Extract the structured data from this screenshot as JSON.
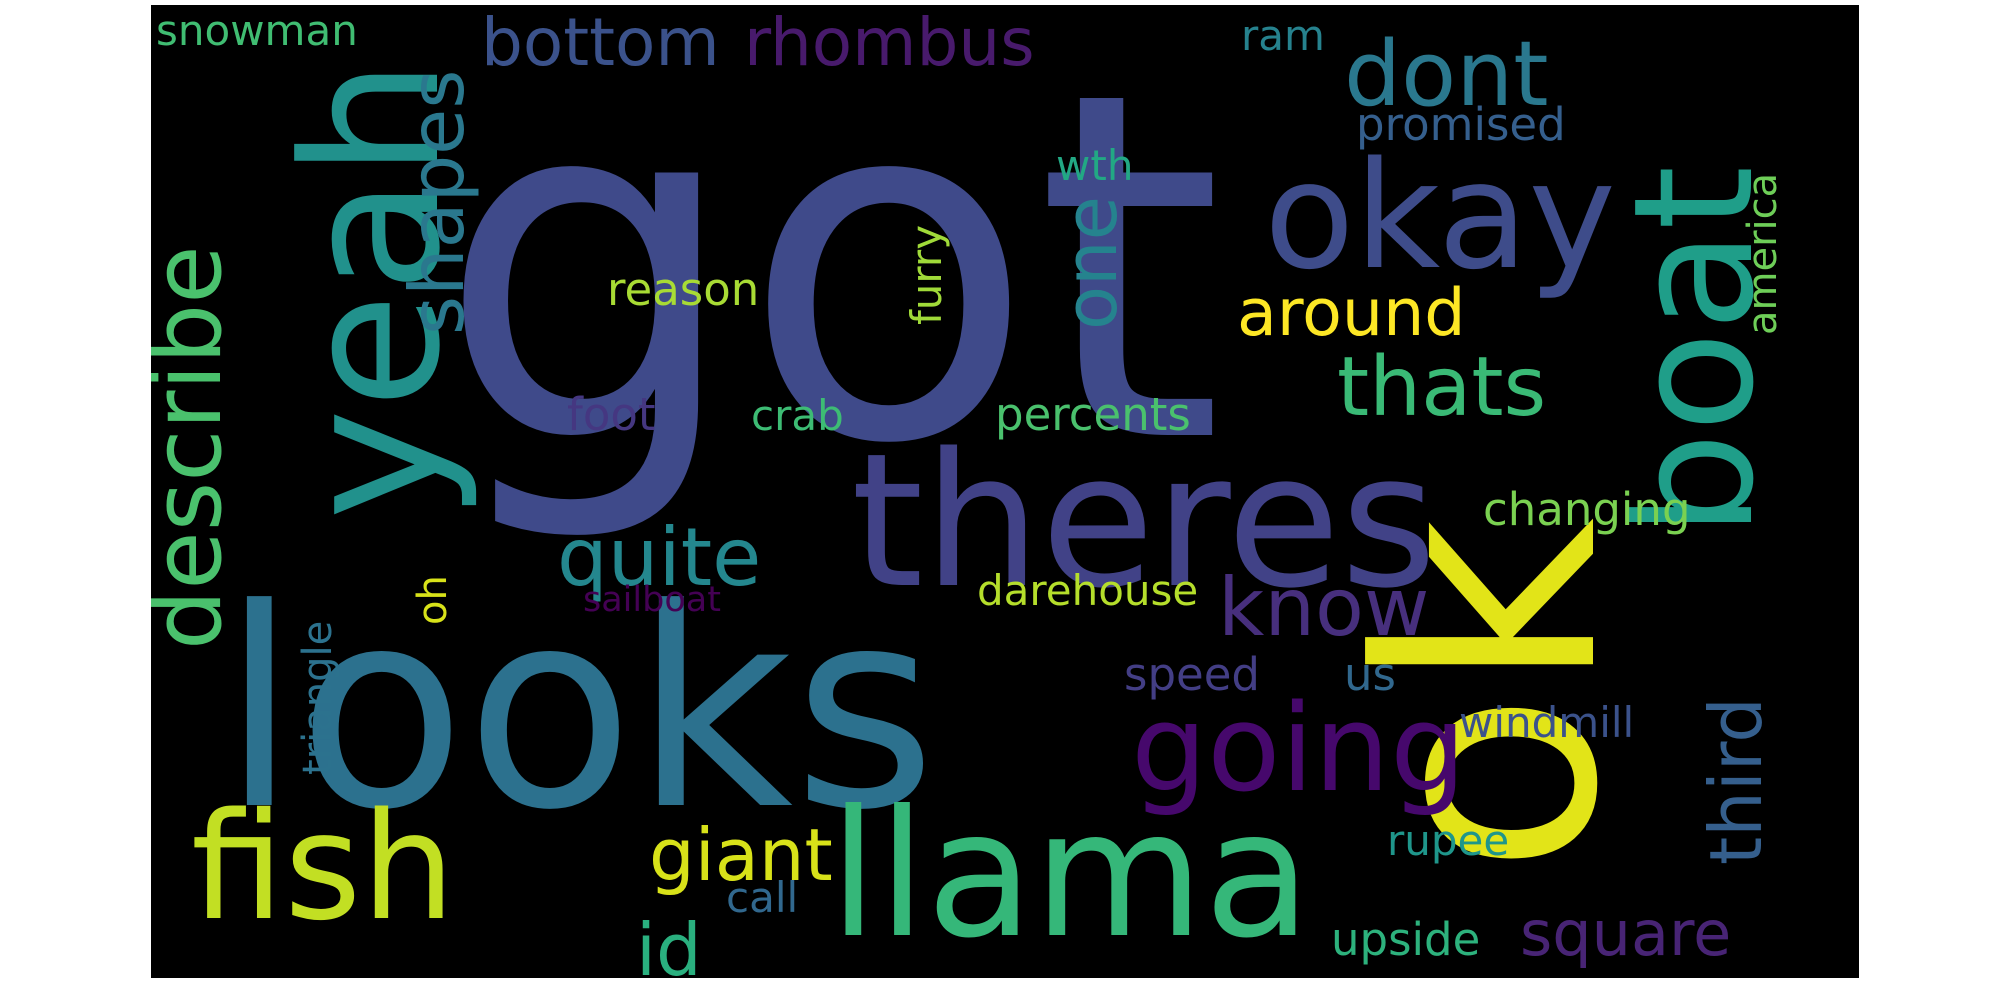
{
  "words": [
    {
      "text": "got",
      "color": "#3f4a8a",
      "rotated": false
    },
    {
      "text": "looks",
      "color": "#2c718e",
      "rotated": false
    },
    {
      "text": "ok",
      "color": "#e2e418",
      "rotated": true
    },
    {
      "text": "theres",
      "color": "#414287",
      "rotated": false
    },
    {
      "text": "yeah",
      "color": "#21918c",
      "rotated": true
    },
    {
      "text": "llama",
      "color": "#35b779",
      "rotated": false
    },
    {
      "text": "okay",
      "color": "#3e4c8a",
      "rotated": false
    },
    {
      "text": "boat",
      "color": "#1f9e89",
      "rotated": true
    },
    {
      "text": "fish",
      "color": "#c2df23",
      "rotated": false
    },
    {
      "text": "going",
      "color": "#46086c",
      "rotated": false
    },
    {
      "text": "describe",
      "color": "#4ac16d",
      "rotated": true
    },
    {
      "text": "shapes",
      "color": "#2a788e",
      "rotated": true
    },
    {
      "text": "dont",
      "color": "#2a788e",
      "rotated": false
    },
    {
      "text": "bottom",
      "color": "#3b528b",
      "rotated": false
    },
    {
      "text": "rhombus",
      "color": "#481a6c",
      "rotated": false
    },
    {
      "text": "thats",
      "color": "#3aba76",
      "rotated": false
    },
    {
      "text": "quite",
      "color": "#24878e",
      "rotated": false
    },
    {
      "text": "know",
      "color": "#472f7d",
      "rotated": false
    },
    {
      "text": "one",
      "color": "#25838e",
      "rotated": true
    },
    {
      "text": "around",
      "color": "#fde725",
      "rotated": false
    },
    {
      "text": "third",
      "color": "#355f8d",
      "rotated": true
    },
    {
      "text": "giant",
      "color": "#d8e219",
      "rotated": false
    },
    {
      "text": "id",
      "color": "#2ab07f",
      "rotated": false
    },
    {
      "text": "square",
      "color": "#482475",
      "rotated": false
    },
    {
      "text": "snowman",
      "color": "#40bd72",
      "rotated": false
    },
    {
      "text": "promised",
      "color": "#355f8d",
      "rotated": false
    },
    {
      "text": "america",
      "color": "#6ece58",
      "rotated": true
    },
    {
      "text": "changing",
      "color": "#7ad151",
      "rotated": false
    },
    {
      "text": "percents",
      "color": "#4ac16d",
      "rotated": false
    },
    {
      "text": "reason",
      "color": "#a8db34",
      "rotated": false
    },
    {
      "text": "furry",
      "color": "#a0da39",
      "rotated": true
    },
    {
      "text": "ram",
      "color": "#26828e",
      "rotated": false
    },
    {
      "text": "wth",
      "color": "#22a884",
      "rotated": false
    },
    {
      "text": "foot",
      "color": "#453781",
      "rotated": false
    },
    {
      "text": "crab",
      "color": "#3dbc74",
      "rotated": false
    },
    {
      "text": "darehouse",
      "color": "#b5de2b",
      "rotated": false
    },
    {
      "text": "oh",
      "color": "#d8e219",
      "rotated": true
    },
    {
      "text": "triangle",
      "color": "#2c728e",
      "rotated": true
    },
    {
      "text": "sailboat",
      "color": "#440154",
      "rotated": false
    },
    {
      "text": "speed",
      "color": "#433e85",
      "rotated": false
    },
    {
      "text": "us",
      "color": "#31688e",
      "rotated": false
    },
    {
      "text": "windmill",
      "color": "#3b528b",
      "rotated": false
    },
    {
      "text": "rupee",
      "color": "#1f968b",
      "rotated": false
    },
    {
      "text": "call",
      "color": "#31688e",
      "rotated": false
    },
    {
      "text": "upside",
      "color": "#2db27d",
      "rotated": false
    }
  ]
}
